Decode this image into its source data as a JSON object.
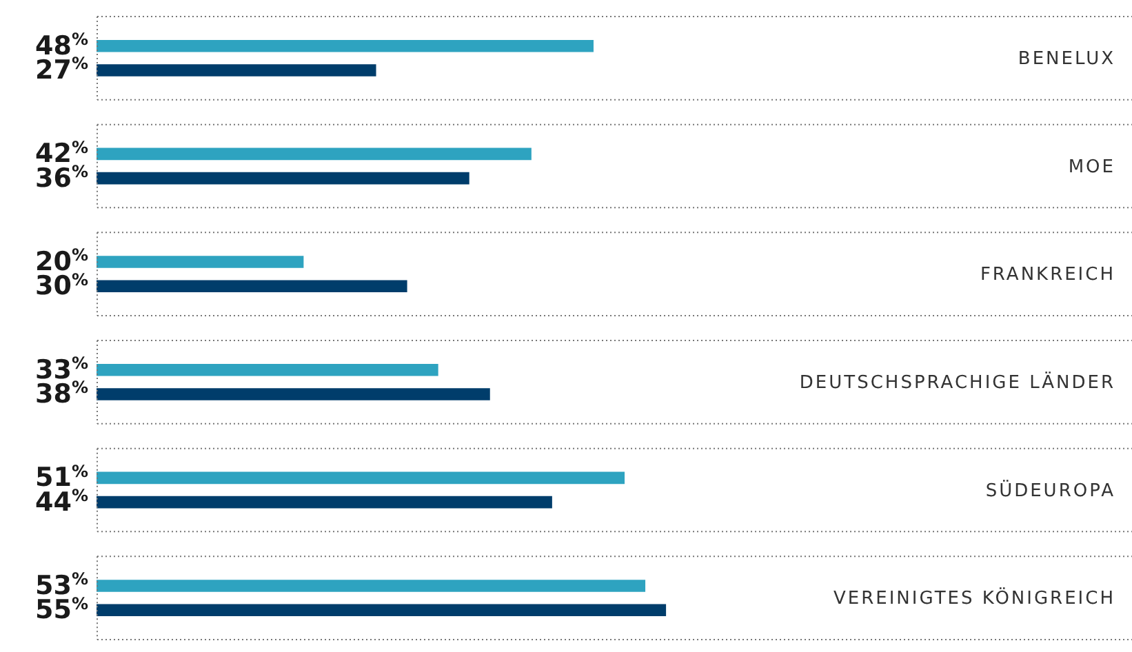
{
  "chart_data": {
    "type": "bar",
    "orientation": "horizontal",
    "categories": [
      "BENELUX",
      "MOE",
      "FRANKREICH",
      "DEUTSCHSPRACHIGE LÄNDER",
      "SÜDEUROPA",
      "VEREINIGTES KÖNIGREICH"
    ],
    "series": [
      {
        "color": "#2ea3c0",
        "values": [
          48,
          42,
          20,
          33,
          51,
          53
        ],
        "value_labels": [
          "48%",
          "42%",
          "20%",
          "33%",
          "51%",
          "53%"
        ]
      },
      {
        "color": "#003d6b",
        "values": [
          27,
          36,
          30,
          38,
          44,
          55
        ],
        "value_labels": [
          "27%",
          "36%",
          "30%",
          "38%",
          "44%",
          "55%"
        ]
      }
    ],
    "xlim": [
      0,
      100
    ],
    "legend": false,
    "tick_labels": false
  }
}
